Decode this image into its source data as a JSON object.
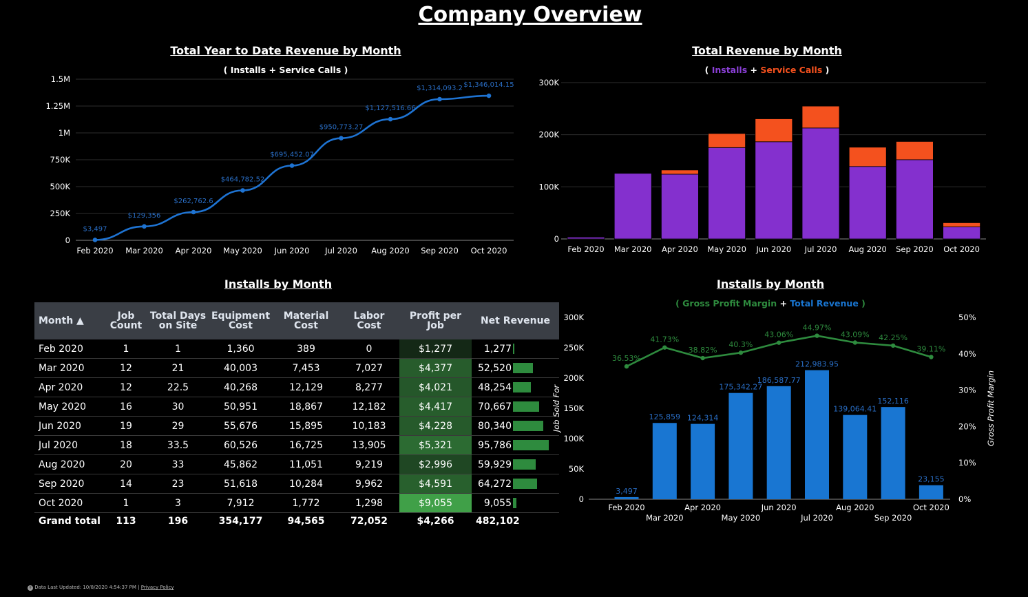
{
  "page": {
    "title": "Company Overview"
  },
  "footer": {
    "updated": "Data Last Updated: 10/8/2020 4:54:37 PM",
    "separator": "|",
    "privacy": "Privacy Policy"
  },
  "colors": {
    "line": "#1e73d2",
    "installs": "#8430ce",
    "service": "#f4511e",
    "green": "#2e8b3e",
    "bar": "#1976d2"
  },
  "ytd": {
    "title": "Total Year to Date Revenue by Month",
    "subtitle": "( Installs + Service Calls )"
  },
  "rev": {
    "title": "Total Revenue by Month",
    "sub_open": "(",
    "sub_installs": "Installs",
    "sub_plus": "+",
    "sub_service": "Service Calls",
    "sub_close": ")"
  },
  "table_title": "Installs by Month",
  "combo": {
    "title": "Installs by Month",
    "sub_open": "(",
    "sub_gpm": "Gross Profit Margin",
    "sub_plus": "+",
    "sub_rev": "Total Revenue",
    "sub_close": ")"
  },
  "table": {
    "headers": [
      "Month ▲",
      "Job Count",
      "Total Days on Site",
      "Equipment Cost",
      "Material Cost",
      "Labor Cost",
      "Profit per Job",
      "Net Revenue"
    ],
    "rows": [
      [
        "Feb 2020",
        "1",
        "1",
        "1,360",
        "389",
        "0",
        "$1,277",
        "1,277"
      ],
      [
        "Mar 2020",
        "12",
        "21",
        "40,003",
        "7,453",
        "7,027",
        "$4,377",
        "52,520"
      ],
      [
        "Apr 2020",
        "12",
        "22.5",
        "40,268",
        "12,129",
        "8,277",
        "$4,021",
        "48,254"
      ],
      [
        "May 2020",
        "16",
        "30",
        "50,951",
        "18,867",
        "12,182",
        "$4,417",
        "70,667"
      ],
      [
        "Jun 2020",
        "19",
        "29",
        "55,676",
        "15,895",
        "10,183",
        "$4,228",
        "80,340"
      ],
      [
        "Jul 2020",
        "18",
        "33.5",
        "60,526",
        "16,725",
        "13,905",
        "$5,321",
        "95,786"
      ],
      [
        "Aug 2020",
        "20",
        "33",
        "45,862",
        "11,051",
        "9,219",
        "$2,996",
        "59,929"
      ],
      [
        "Sep 2020",
        "14",
        "23",
        "51,618",
        "10,284",
        "9,962",
        "$4,591",
        "64,272"
      ],
      [
        "Oct 2020",
        "1",
        "3",
        "7,912",
        "1,772",
        "1,298",
        "$9,055",
        "9,055"
      ]
    ],
    "total": [
      "Grand total",
      "113",
      "196",
      "354,177",
      "94,565",
      "72,052",
      "$4,266",
      "482,102"
    ],
    "profit_values": [
      1277,
      4377,
      4021,
      4417,
      4228,
      5321,
      2996,
      4591,
      9055
    ],
    "net_values": [
      1277,
      52520,
      48254,
      70667,
      80340,
      95786,
      59929,
      64272,
      9055
    ]
  },
  "chart_data": [
    {
      "type": "line",
      "title": "Total Year to Date Revenue by Month",
      "subtitle": "( Installs + Service Calls )",
      "categories": [
        "Feb 2020",
        "Mar 2020",
        "Apr 2020",
        "May 2020",
        "Jun 2020",
        "Jul 2020",
        "Aug 2020",
        "Sep 2020",
        "Oct 2020"
      ],
      "values": [
        3497,
        129356,
        262762.6,
        464782.52,
        695452.07,
        950773.27,
        1127516.66,
        1314093.2,
        1346014.15
      ],
      "data_labels": [
        "$3,497",
        "$129,356",
        "$262,762.6",
        "$464,782.52",
        "$695,452.07",
        "$950,773.27",
        "$1,127,516.66",
        "$1,314,093.2",
        "$1,346,014.15"
      ],
      "yticks": [
        0,
        250000,
        500000,
        750000,
        1000000,
        1250000,
        1500000
      ],
      "ytick_labels": [
        "0",
        "250K",
        "500K",
        "750K",
        "1M",
        "1.25M",
        "1.5M"
      ],
      "ylim": [
        0,
        1500000
      ],
      "grid": true
    },
    {
      "type": "bar",
      "stacked": true,
      "title": "Total Revenue by Month",
      "categories": [
        "Feb 2020",
        "Mar 2020",
        "Apr 2020",
        "May 2020",
        "Jun 2020",
        "Jul 2020",
        "Aug 2020",
        "Sep 2020",
        "Oct 2020"
      ],
      "series": [
        {
          "name": "Installs",
          "values": [
            3497,
            125859,
            124314,
            175342,
            186588,
            212984,
            139064,
            152116,
            23155
          ]
        },
        {
          "name": "Service Calls",
          "values": [
            0,
            0,
            8000,
            27000,
            44000,
            42000,
            37000,
            35000,
            8000
          ]
        }
      ],
      "yticks": [
        0,
        100000,
        200000,
        300000
      ],
      "ytick_labels": [
        "0",
        "100K",
        "200K",
        "300K"
      ],
      "ylim": [
        0,
        300000
      ],
      "grid": true
    },
    {
      "type": "bar",
      "title": "Installs by Month",
      "categories": [
        "Feb 2020",
        "Mar 2020",
        "Apr 2020",
        "May 2020",
        "Jun 2020",
        "Jul 2020",
        "Aug 2020",
        "Sep 2020",
        "Oct 2020"
      ],
      "series": [
        {
          "name": "Total Revenue",
          "values": [
            3497,
            125859,
            124314,
            175342.27,
            186587.77,
            212983.95,
            139064.41,
            152116,
            23155
          ],
          "labels": [
            "3,497",
            "125,859",
            "124,314",
            "175,342.27",
            "186,587.77",
            "212,983.95",
            "139,064.41",
            "152,116",
            "23,155"
          ]
        },
        {
          "name": "Gross Profit Margin",
          "type": "line",
          "axis": "right",
          "values": [
            36.53,
            41.73,
            38.82,
            40.3,
            43.06,
            44.97,
            43.09,
            42.25,
            39.11
          ],
          "labels": [
            "36.53%",
            "41.73%",
            "38.82%",
            "40.3%",
            "43.06%",
            "44.97%",
            "43.09%",
            "42.25%",
            "39.11%"
          ]
        }
      ],
      "ylabel": "Job Sold For",
      "y2label": "Gross Profit Margin",
      "yticks": [
        0,
        50000,
        100000,
        150000,
        200000,
        250000,
        300000
      ],
      "ytick_labels": [
        "0",
        "50K",
        "100K",
        "150K",
        "200K",
        "250K",
        "300K"
      ],
      "ylim": [
        0,
        300000
      ],
      "y2ticks": [
        0,
        10,
        20,
        30,
        40,
        50
      ],
      "y2tick_labels": [
        "0%",
        "10%",
        "20%",
        "30%",
        "40%",
        "50%"
      ],
      "y2lim": [
        0,
        50
      ]
    }
  ]
}
